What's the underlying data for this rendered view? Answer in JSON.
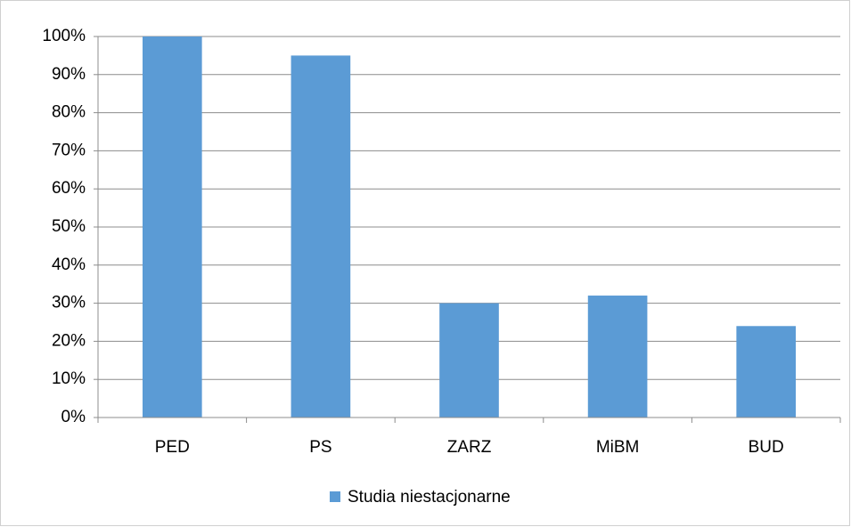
{
  "chart_data": {
    "type": "bar",
    "categories": [
      "PED",
      "PS",
      "ZARZ",
      "MiBM",
      "BUD"
    ],
    "series": [
      {
        "name": "Studia niestacjonarne",
        "color": "#5b9bd5",
        "values": [
          100,
          95,
          30,
          32,
          24
        ]
      }
    ],
    "ylim": [
      0,
      100
    ],
    "yticks": [
      {
        "value": 0,
        "label": "0%"
      },
      {
        "value": 10,
        "label": "10%"
      },
      {
        "value": 20,
        "label": "20%"
      },
      {
        "value": 30,
        "label": "30%"
      },
      {
        "value": 40,
        "label": "40%"
      },
      {
        "value": 50,
        "label": "50%"
      },
      {
        "value": 60,
        "label": "60%"
      },
      {
        "value": 70,
        "label": "70%"
      },
      {
        "value": 80,
        "label": "80%"
      },
      {
        "value": 90,
        "label": "90%"
      },
      {
        "value": 100,
        "label": "100%"
      }
    ],
    "grid": true,
    "legend": "bottom"
  }
}
